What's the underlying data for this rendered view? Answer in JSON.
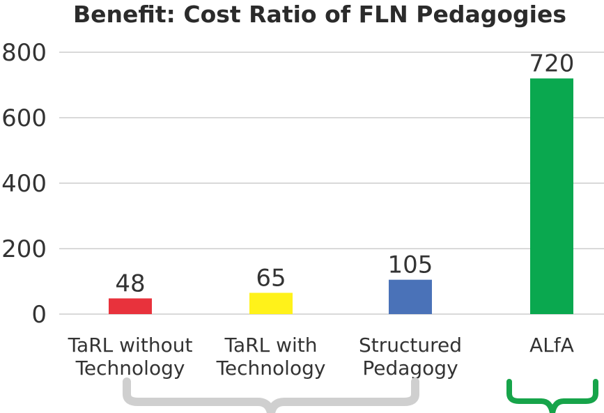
{
  "chart_data": {
    "type": "bar",
    "title": "Benefit: Cost Ratio of FLN Pedagogies",
    "xlabel": "",
    "ylabel": "",
    "ylim": [
      0,
      800
    ],
    "yticks": [
      0,
      200,
      400,
      600,
      800
    ],
    "grid": true,
    "categories": [
      [
        "TaRL without",
        "Technology"
      ],
      [
        "TaRL with",
        "Technology"
      ],
      [
        "Structured",
        "Pedagogy"
      ],
      [
        "ALfA"
      ]
    ],
    "values": [
      48,
      65,
      105,
      720
    ],
    "data_labels": [
      "48",
      "65",
      "105",
      "720"
    ],
    "bar_colors": [
      "#e8323c",
      "#fff21a",
      "#4a72b8",
      "#0aa84f"
    ],
    "brace_colors": [
      "#cfcfcf",
      "#17a44a"
    ]
  }
}
